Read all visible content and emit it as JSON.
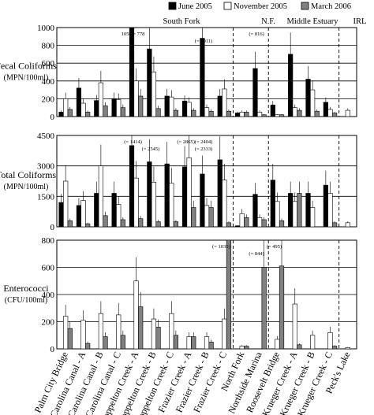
{
  "legend": [
    {
      "name": "June 2005",
      "color": "#000000"
    },
    {
      "name": "November 2005",
      "color": "#ffffff"
    },
    {
      "name": "March 2006",
      "color": "#808080"
    }
  ],
  "regions": [
    "South Fork",
    "N.F.",
    "Middle Estuary",
    "IRL"
  ],
  "categories": [
    "Palm City Bridge",
    "Carolina Canal - A",
    "Carolina Canal - B",
    "Carolina Canal - C",
    "Poppelton Creek - A",
    "Poppelton Creek - B",
    "Poppelton Creek - C",
    "Frazier Creek - A",
    "Frazier Creek - B",
    "Frazier Creek - C",
    "North Fork",
    "Northside Marina",
    "Roosevelt Bridge",
    "Krueger Creek - A",
    "Krueger Creek - B",
    "Krueger Creek - C",
    "Peck's Lake"
  ],
  "chart_data": [
    {
      "type": "bar",
      "ylabel": "Fecal Coliforms",
      "yunit": "(MPN/100ml)",
      "ylim": [
        0,
        1000
      ],
      "yticks": [
        0,
        200,
        400,
        600,
        800,
        1000
      ],
      "series": [
        {
          "name": "June 2005",
          "values": [
            50,
            320,
            180,
            200,
            1050,
            760,
            230,
            175,
            880,
            230,
            40,
            540,
            130,
            700,
            420,
            160,
            0
          ]
        },
        {
          "name": "November 2005",
          "values": [
            200,
            150,
            380,
            190,
            400,
            500,
            220,
            160,
            100,
            310,
            50,
            50,
            20,
            100,
            300,
            80,
            70
          ]
        },
        {
          "name": "March 2006",
          "values": [
            80,
            50,
            120,
            100,
            230,
            90,
            70,
            70,
            60,
            60,
            50,
            20,
            20,
            70,
            60,
            40,
            0
          ]
        }
      ],
      "annotations": [
        {
          "text": "1050 = 778",
          "category": 4
        },
        {
          "text": "(= 1011)",
          "category": 8
        },
        {
          "text": "(= 816)",
          "category": 11
        }
      ]
    },
    {
      "type": "bar",
      "ylabel": "Total Coliforms",
      "yunit": "(MPN/100ml)",
      "ylim": [
        0,
        4500
      ],
      "yticks": [
        0,
        1500,
        3000,
        4500
      ],
      "series": [
        {
          "name": "June 2005",
          "values": [
            1200,
            1050,
            1650,
            1650,
            4000,
            3200,
            3100,
            2950,
            2600,
            3300,
            50,
            1600,
            2300,
            1650,
            1650,
            2050,
            0
          ]
        },
        {
          "name": "November 2005",
          "values": [
            2250,
            1300,
            3000,
            1100,
            2400,
            2200,
            2150,
            3400,
            1050,
            2300,
            650,
            450,
            1250,
            1250,
            950,
            1650,
            200
          ]
        },
        {
          "name": "March 2006",
          "values": [
            300,
            150,
            550,
            350,
            400,
            250,
            250,
            950,
            950,
            200,
            450,
            350,
            300,
            1650,
            0,
            200,
            0
          ]
        }
      ],
      "annotations": [
        {
          "text": "(= 1414)",
          "category": 4
        },
        {
          "text": "(= 2545)",
          "category": 5
        },
        {
          "text": "(= 2865)",
          "category": 7
        },
        {
          "text": "(= 2333)",
          "category": 8
        },
        {
          "text": "(= 2404)",
          "category": 8
        }
      ]
    },
    {
      "type": "bar",
      "ylabel": "Enterococci",
      "yunit": "(CFU/100ml)",
      "ylim": [
        0,
        800
      ],
      "yticks": [
        0,
        200,
        400,
        600,
        800
      ],
      "series": [
        {
          "name": "June 2005",
          "values": [
            0,
            0,
            0,
            0,
            0,
            0,
            0,
            0,
            0,
            0,
            0,
            0,
            0,
            0,
            0,
            0,
            0
          ]
        },
        {
          "name": "November 2005",
          "values": [
            240,
            210,
            260,
            250,
            500,
            220,
            260,
            90,
            90,
            220,
            20,
            0,
            70,
            330,
            100,
            120,
            10
          ]
        },
        {
          "name": "March 2006",
          "values": [
            150,
            40,
            90,
            100,
            310,
            160,
            100,
            90,
            50,
            800,
            20,
            600,
            610,
            30,
            0,
            20,
            0
          ]
        }
      ],
      "annotations": [
        {
          "text": "(= 1035)",
          "category": 9
        },
        {
          "text": "(= 844)",
          "category": 11
        },
        {
          "text": "(= 495)",
          "category": 12
        }
      ]
    }
  ]
}
